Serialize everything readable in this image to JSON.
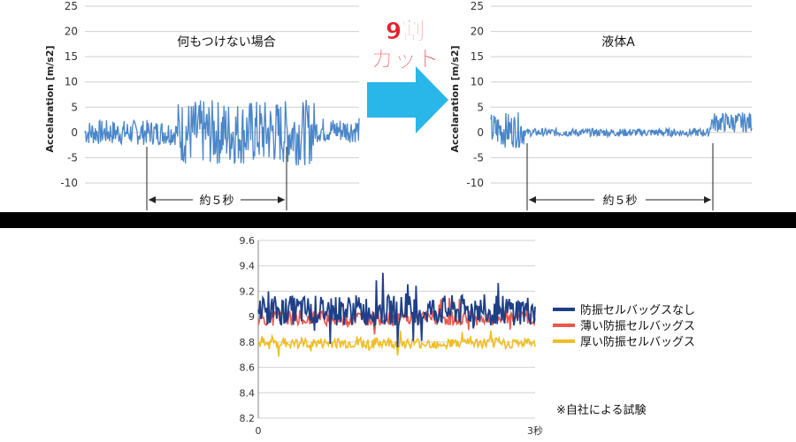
{
  "top_left": {
    "ylabel": "Accelaration [m/s2]",
    "annotation": "何もつけない場合",
    "span_label": "約５秒",
    "y_ticks": [
      "25",
      "20",
      "15",
      "10",
      "5",
      "0",
      "-5",
      "-10"
    ]
  },
  "top_right": {
    "ylabel": "Accelaration [m/s2]",
    "annotation": "液体A",
    "span_label": "約５秒",
    "y_ticks": [
      "25",
      "20",
      "15",
      "10",
      "5",
      "0",
      "-5",
      "-10"
    ]
  },
  "arrow": {
    "line1": "9割",
    "line2": "カット",
    "color": "#29b6e8",
    "text_color": "#e8202a"
  },
  "bottom": {
    "y_ticks": [
      "9.6",
      "9.4",
      "9.2",
      "9",
      "8.8",
      "8.6",
      "8.4",
      "8.2"
    ],
    "x_ticks": [
      "0",
      "3秒"
    ],
    "legend": [
      "防振セルバッグスなし",
      "薄い防振セルバッグス",
      "厚い防振セルバッグス"
    ],
    "note": "※自社による試験"
  },
  "colors": {
    "trace_blue": "#4a86c8",
    "series_navy": "#1f3f86",
    "series_red": "#e8584b",
    "series_yellow": "#efbe25",
    "divider": "#000000"
  },
  "chart_data": [
    {
      "type": "line",
      "title": "何もつけない場合",
      "xlabel": "",
      "ylabel": "Accelaration [m/s2]",
      "ylim": [
        -10,
        25
      ],
      "grid": true,
      "series": [
        {
          "segments": [
            {
              "x_range": [
                0.0,
                0.34
              ],
              "mean": 0.0,
              "amplitude": 2.5
            },
            {
              "x_range": [
                0.34,
                0.84
              ],
              "mean": 0.0,
              "amplitude": 6.5
            },
            {
              "x_range": [
                0.84,
                1.0
              ],
              "mean": 0.5,
              "amplitude": 2.5
            }
          ]
        }
      ],
      "annotations": [
        "約５秒"
      ]
    },
    {
      "type": "line",
      "title": "液体A",
      "xlabel": "",
      "ylabel": "Accelaration [m/s2]",
      "ylim": [
        -10,
        25
      ],
      "grid": true,
      "series": [
        {
          "segments": [
            {
              "x_range": [
                0.0,
                0.13
              ],
              "mean": 0.5,
              "amplitude": 3.5
            },
            {
              "x_range": [
                0.13,
                0.84
              ],
              "mean": 0.0,
              "amplitude": 0.8
            },
            {
              "x_range": [
                0.84,
                1.0
              ],
              "mean": 2.0,
              "amplitude": 2.0
            }
          ]
        }
      ],
      "annotations": [
        "約５秒"
      ]
    },
    {
      "type": "line",
      "title": "",
      "xlabel": "",
      "ylabel": "",
      "ylim": [
        8.2,
        9.6
      ],
      "x_range": [
        0,
        3
      ],
      "grid": true,
      "legend_position": "right",
      "series": [
        {
          "name": "防振セルバッグスなし",
          "mean": 9.05,
          "amplitude": 0.2,
          "color": "#1f3f86"
        },
        {
          "name": "薄い防振セルバッグス",
          "mean": 8.99,
          "amplitude": 0.1,
          "color": "#e8584b"
        },
        {
          "name": "厚い防振セルバッグス",
          "mean": 8.79,
          "amplitude": 0.07,
          "color": "#efbe25"
        }
      ]
    }
  ]
}
